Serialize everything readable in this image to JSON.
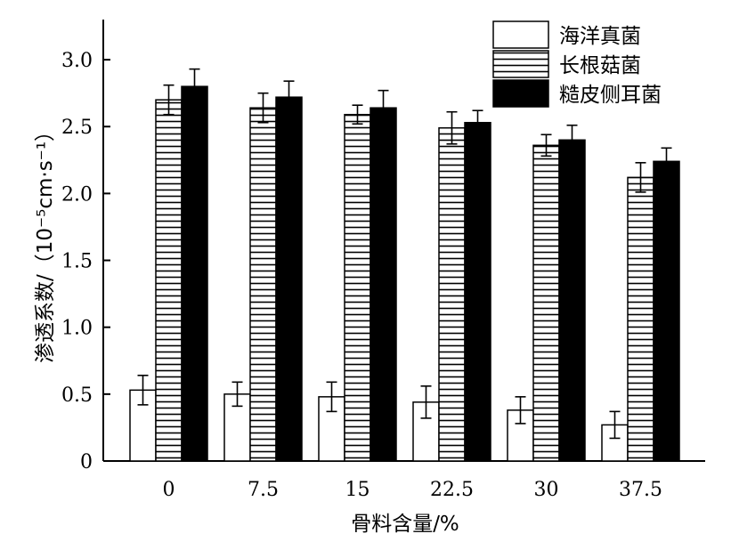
{
  "chart_data": {
    "type": "bar",
    "categories": [
      "0",
      "7.5",
      "15",
      "22.5",
      "30",
      "37.5"
    ],
    "series": [
      {
        "name": "海洋真菌",
        "values": [
          0.53,
          0.5,
          0.48,
          0.44,
          0.38,
          0.27
        ],
        "errors": [
          0.11,
          0.09,
          0.11,
          0.12,
          0.1,
          0.1
        ],
        "fill": "white"
      },
      {
        "name": "长根菇菌",
        "values": [
          2.7,
          2.64,
          2.59,
          2.49,
          2.36,
          2.12
        ],
        "errors": [
          0.11,
          0.11,
          0.07,
          0.12,
          0.08,
          0.11
        ],
        "fill": "hstripe"
      },
      {
        "name": "糙皮侧耳菌",
        "values": [
          2.8,
          2.72,
          2.64,
          2.53,
          2.4,
          2.24
        ],
        "errors": [
          0.13,
          0.12,
          0.13,
          0.09,
          0.11,
          0.1
        ],
        "fill": "black"
      }
    ],
    "ylim": [
      0,
      3.3
    ],
    "yticks": [
      "0",
      "0.5",
      "1.0",
      "1.5",
      "2.0",
      "2.5",
      "3.0"
    ],
    "ytick_values": [
      0,
      0.5,
      1.0,
      1.5,
      2.0,
      2.5,
      3.0
    ],
    "xlabel": "骨料含量/%",
    "ylabel": "渗透系数/（10⁻⁵cm·s⁻¹）",
    "legend_position": "top-right",
    "grid": false
  }
}
